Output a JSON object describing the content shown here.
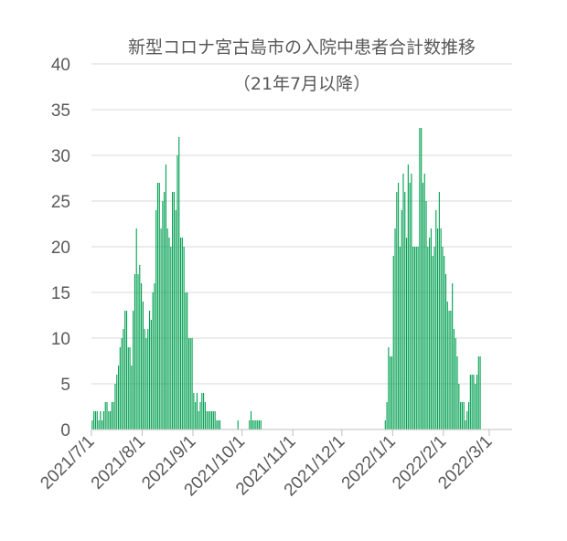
{
  "chart_data": {
    "type": "bar",
    "title": "新型コロナ宮古島市の入院中患者合計数推移",
    "subtitle": "（21年7月以降）",
    "xlabel": "",
    "ylabel": "",
    "ylim": [
      0,
      40
    ],
    "y_ticks": [
      "0",
      "5",
      "10",
      "15",
      "20",
      "25",
      "30",
      "35",
      "40"
    ],
    "x_range": [
      "2021-07-01",
      "2022-03-15"
    ],
    "x_ticks": [
      {
        "date": "2021-07-01",
        "label": "2021/7/1"
      },
      {
        "date": "2021-08-01",
        "label": "2021/8/1"
      },
      {
        "date": "2021-09-01",
        "label": "2021/9/1"
      },
      {
        "date": "2021-10-01",
        "label": "2021/10/1"
      },
      {
        "date": "2021-11-01",
        "label": "2021/11/1"
      },
      {
        "date": "2021-12-01",
        "label": "2021/12/1"
      },
      {
        "date": "2022-01-01",
        "label": "2022/1/1"
      },
      {
        "date": "2022-02-01",
        "label": "2022/2/1"
      },
      {
        "date": "2022-03-01",
        "label": "2022/3/1"
      }
    ],
    "grid": true,
    "legend": "none",
    "bar_color": "#00A050",
    "series": [
      {
        "values": [
          [
            "2021-07-01",
            1
          ],
          [
            "2021-07-02",
            2
          ],
          [
            "2021-07-03",
            2
          ],
          [
            "2021-07-04",
            2
          ],
          [
            "2021-07-05",
            1
          ],
          [
            "2021-07-06",
            2
          ],
          [
            "2021-07-07",
            1
          ],
          [
            "2021-07-08",
            2
          ],
          [
            "2021-07-09",
            3
          ],
          [
            "2021-07-10",
            3
          ],
          [
            "2021-07-11",
            2
          ],
          [
            "2021-07-12",
            2
          ],
          [
            "2021-07-13",
            3
          ],
          [
            "2021-07-14",
            3
          ],
          [
            "2021-07-15",
            5
          ],
          [
            "2021-07-16",
            6
          ],
          [
            "2021-07-17",
            7
          ],
          [
            "2021-07-18",
            9
          ],
          [
            "2021-07-19",
            10
          ],
          [
            "2021-07-20",
            11
          ],
          [
            "2021-07-21",
            13
          ],
          [
            "2021-07-22",
            13
          ],
          [
            "2021-07-23",
            9
          ],
          [
            "2021-07-24",
            9
          ],
          [
            "2021-07-25",
            7
          ],
          [
            "2021-07-26",
            13
          ],
          [
            "2021-07-27",
            17
          ],
          [
            "2021-07-28",
            22
          ],
          [
            "2021-07-29",
            17
          ],
          [
            "2021-07-30",
            18
          ],
          [
            "2021-07-31",
            16
          ],
          [
            "2021-08-01",
            14
          ],
          [
            "2021-08-02",
            11
          ],
          [
            "2021-08-03",
            10
          ],
          [
            "2021-08-04",
            11
          ],
          [
            "2021-08-05",
            13
          ],
          [
            "2021-08-06",
            12
          ],
          [
            "2021-08-07",
            15
          ],
          [
            "2021-08-08",
            16
          ],
          [
            "2021-08-09",
            24
          ],
          [
            "2021-08-10",
            27
          ],
          [
            "2021-08-11",
            27
          ],
          [
            "2021-08-12",
            22
          ],
          [
            "2021-08-13",
            25
          ],
          [
            "2021-08-14",
            26
          ],
          [
            "2021-08-15",
            29
          ],
          [
            "2021-08-16",
            22
          ],
          [
            "2021-08-17",
            21
          ],
          [
            "2021-08-18",
            20
          ],
          [
            "2021-08-19",
            26
          ],
          [
            "2021-08-20",
            26
          ],
          [
            "2021-08-21",
            24
          ],
          [
            "2021-08-22",
            30
          ],
          [
            "2021-08-23",
            32
          ],
          [
            "2021-08-24",
            21
          ],
          [
            "2021-08-25",
            21
          ],
          [
            "2021-08-26",
            20
          ],
          [
            "2021-08-27",
            15
          ],
          [
            "2021-08-28",
            15
          ],
          [
            "2021-08-29",
            10
          ],
          [
            "2021-08-30",
            10
          ],
          [
            "2021-08-31",
            10
          ],
          [
            "2021-09-01",
            4
          ],
          [
            "2021-09-02",
            3
          ],
          [
            "2021-09-03",
            4
          ],
          [
            "2021-09-04",
            2
          ],
          [
            "2021-09-05",
            3
          ],
          [
            "2021-09-06",
            4
          ],
          [
            "2021-09-07",
            4
          ],
          [
            "2021-09-08",
            3
          ],
          [
            "2021-09-09",
            2
          ],
          [
            "2021-09-10",
            2
          ],
          [
            "2021-09-11",
            2
          ],
          [
            "2021-09-12",
            2
          ],
          [
            "2021-09-13",
            2
          ],
          [
            "2021-09-14",
            2
          ],
          [
            "2021-09-15",
            1
          ],
          [
            "2021-09-16",
            1
          ],
          [
            "2021-09-17",
            1
          ],
          [
            "2021-09-28",
            1
          ],
          [
            "2021-10-05",
            1
          ],
          [
            "2021-10-06",
            2
          ],
          [
            "2021-10-07",
            1
          ],
          [
            "2021-10-08",
            1
          ],
          [
            "2021-10-09",
            1
          ],
          [
            "2021-10-10",
            1
          ],
          [
            "2021-10-11",
            1
          ],
          [
            "2021-10-12",
            1
          ],
          [
            "2021-12-27",
            1
          ],
          [
            "2021-12-28",
            3
          ],
          [
            "2021-12-29",
            9
          ],
          [
            "2021-12-30",
            8
          ],
          [
            "2021-12-31",
            8
          ],
          [
            "2022-01-01",
            19
          ],
          [
            "2022-01-02",
            22
          ],
          [
            "2022-01-03",
            26
          ],
          [
            "2022-01-04",
            27
          ],
          [
            "2022-01-05",
            20
          ],
          [
            "2022-01-06",
            24
          ],
          [
            "2022-01-07",
            28
          ],
          [
            "2022-01-08",
            26
          ],
          [
            "2022-01-09",
            21
          ],
          [
            "2022-01-10",
            29
          ],
          [
            "2022-01-11",
            27
          ],
          [
            "2022-01-12",
            28
          ],
          [
            "2022-01-13",
            20
          ],
          [
            "2022-01-14",
            20
          ],
          [
            "2022-01-15",
            20
          ],
          [
            "2022-01-16",
            20
          ],
          [
            "2022-01-17",
            33
          ],
          [
            "2022-01-18",
            33
          ],
          [
            "2022-01-19",
            27
          ],
          [
            "2022-01-20",
            28
          ],
          [
            "2022-01-21",
            25
          ],
          [
            "2022-01-22",
            20
          ],
          [
            "2022-01-23",
            21
          ],
          [
            "2022-01-24",
            22
          ],
          [
            "2022-01-25",
            19
          ],
          [
            "2022-01-26",
            20
          ],
          [
            "2022-01-27",
            24
          ],
          [
            "2022-01-28",
            22
          ],
          [
            "2022-01-29",
            26
          ],
          [
            "2022-01-30",
            22
          ],
          [
            "2022-01-31",
            20
          ],
          [
            "2022-02-01",
            19
          ],
          [
            "2022-02-02",
            17
          ],
          [
            "2022-02-03",
            14
          ],
          [
            "2022-02-04",
            13
          ],
          [
            "2022-02-05",
            13
          ],
          [
            "2022-02-06",
            16
          ],
          [
            "2022-02-07",
            11
          ],
          [
            "2022-02-08",
            10
          ],
          [
            "2022-02-09",
            8
          ],
          [
            "2022-02-10",
            5
          ],
          [
            "2022-02-11",
            3
          ],
          [
            "2022-02-12",
            3
          ],
          [
            "2022-02-13",
            3
          ],
          [
            "2022-02-14",
            1
          ],
          [
            "2022-02-15",
            2
          ],
          [
            "2022-02-16",
            3
          ],
          [
            "2022-02-17",
            6
          ],
          [
            "2022-02-18",
            6
          ],
          [
            "2022-02-19",
            6
          ],
          [
            "2022-02-20",
            5
          ],
          [
            "2022-02-21",
            6
          ],
          [
            "2022-02-22",
            8
          ],
          [
            "2022-02-23",
            8
          ]
        ]
      }
    ]
  }
}
